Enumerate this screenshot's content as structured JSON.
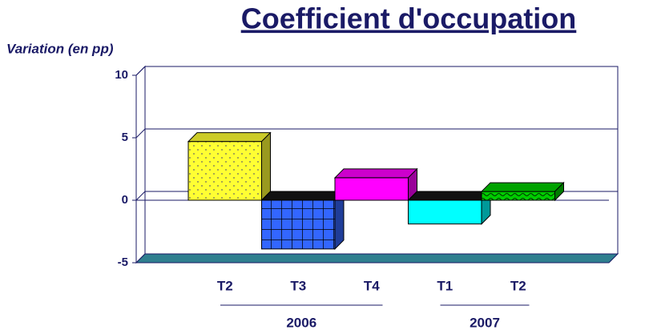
{
  "chart_data": {
    "type": "bar3d",
    "title": "Coefficient d'occupation",
    "y_label": "Variation (en pp)",
    "categories": [
      "T2",
      "T3",
      "T4",
      "T1",
      "T2"
    ],
    "groups": [
      {
        "name": "2006",
        "count": 3
      },
      {
        "name": "2007",
        "count": 2
      }
    ],
    "values": [
      4.7,
      -3.9,
      1.8,
      -1.9,
      0.7
    ],
    "colors": [
      "#ffff33",
      "#3366ff",
      "#ff00ff",
      "#00ffff",
      "#00cc00"
    ],
    "patterns": [
      "dots",
      "grid",
      null,
      null,
      "wave"
    ],
    "ylim": [
      -5,
      10
    ],
    "yticks": [
      -5,
      0,
      5,
      10
    ],
    "grid": true
  }
}
